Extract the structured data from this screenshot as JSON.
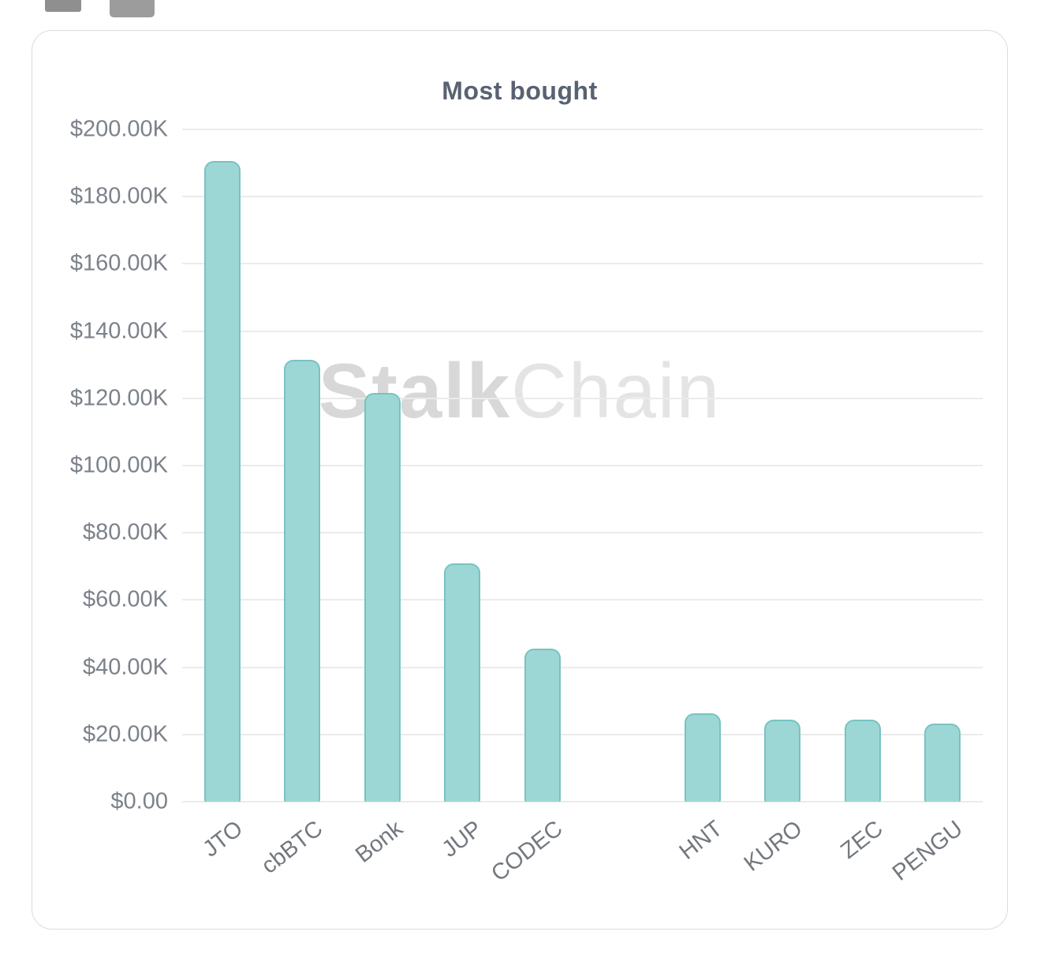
{
  "chart_data": {
    "type": "bar",
    "title": "Most bought",
    "categories": [
      "JTO",
      "cbBTC",
      "Bonk",
      "JUP",
      "CODEC",
      "",
      "HNT",
      "KURO",
      "ZEC",
      "PENGU"
    ],
    "values": [
      190500,
      131500,
      121500,
      71000,
      45500,
      null,
      26300,
      24500,
      24500,
      23200
    ],
    "xlabel": "",
    "ylabel": "",
    "ylim": [
      0,
      200000
    ],
    "grid": true,
    "legend": "none",
    "y_ticks": [
      {
        "value": 0,
        "label": "$0.00"
      },
      {
        "value": 20000,
        "label": "$20.00K"
      },
      {
        "value": 40000,
        "label": "$40.00K"
      },
      {
        "value": 60000,
        "label": "$60.00K"
      },
      {
        "value": 80000,
        "label": "$80.00K"
      },
      {
        "value": 100000,
        "label": "$100.00K"
      },
      {
        "value": 120000,
        "label": "$120.00K"
      },
      {
        "value": 140000,
        "label": "$140.00K"
      },
      {
        "value": 160000,
        "label": "$160.00K"
      },
      {
        "value": 180000,
        "label": "$180.00K"
      },
      {
        "value": 200000,
        "label": "$200.00K"
      }
    ],
    "bar_color": "#9dd7d5",
    "bar_border_color": "#77c3c1",
    "watermark": {
      "bold": "Stalk",
      "light": "Chain"
    }
  }
}
